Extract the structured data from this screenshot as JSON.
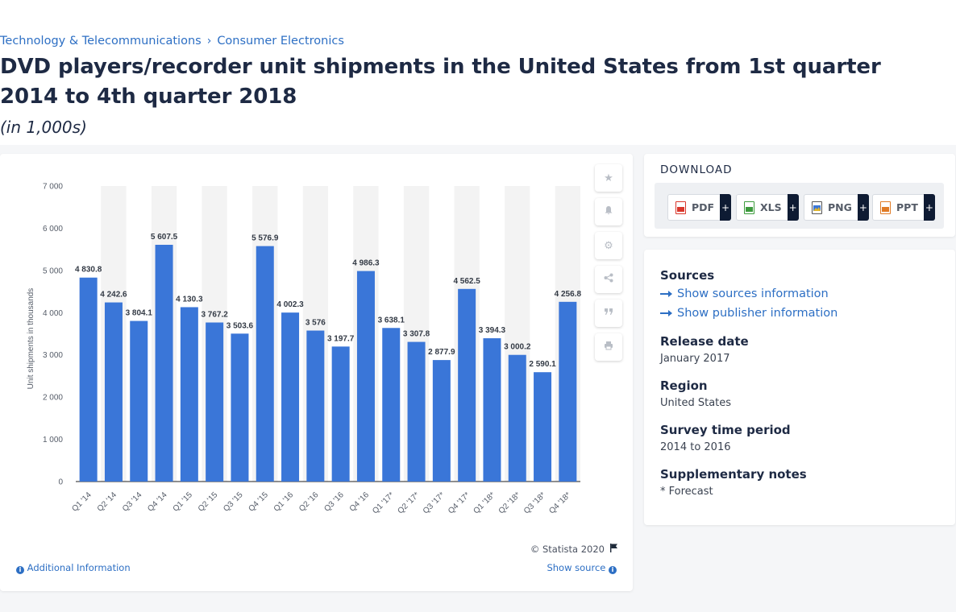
{
  "breadcrumb": {
    "items": [
      "Technology & Telecommunications",
      "Consumer Electronics"
    ],
    "separator": "›"
  },
  "title": "DVD players/recorder unit shipments in the United States from 1st quarter 2014 to 4th quarter 2018",
  "subtitle": "(in 1,000s)",
  "chart_data": {
    "type": "bar",
    "categories": [
      "Q1 '14",
      "Q2 '14",
      "Q3 '14",
      "Q4 '14",
      "Q1 '15",
      "Q2 '15",
      "Q3 '15",
      "Q4 '15",
      "Q1 '16",
      "Q2 '16",
      "Q3 '16",
      "Q4 '16",
      "Q1 '17*",
      "Q2 '17*",
      "Q3 '17*",
      "Q4 '17*",
      "Q1 '18*",
      "Q2 '18*",
      "Q3 '18*",
      "Q4 '18*"
    ],
    "values": [
      4830.8,
      4242.6,
      3804.1,
      5607.5,
      4130.3,
      3767.2,
      3503.6,
      5576.9,
      4002.3,
      3576,
      3197.7,
      4986.3,
      3638.1,
      3307.8,
      2877.9,
      4562.5,
      3394.3,
      3000.2,
      2590.1,
      4256.8
    ],
    "value_labels": [
      "4 830.8",
      "4 242.6",
      "3 804.1",
      "5 607.5",
      "4 130.3",
      "3 767.2",
      "3 503.6",
      "5 576.9",
      "4 002.3",
      "3 576",
      "3 197.7",
      "4 986.3",
      "3 638.1",
      "3 307.8",
      "2 877.9",
      "4 562.5",
      "3 394.3",
      "3 000.2",
      "2 590.1",
      "4 256.8"
    ],
    "ylabel": "Unit shipments in thousands",
    "xlabel": "",
    "ylim": [
      0,
      7000
    ],
    "yticks": [
      0,
      1000,
      2000,
      3000,
      4000,
      5000,
      6000,
      7000
    ],
    "ytick_labels": [
      "0",
      "1 000",
      "2 000",
      "3 000",
      "4 000",
      "5 000",
      "6 000",
      "7 000"
    ],
    "bar_color": "#3a76d8",
    "band_color": "#f3f3f3",
    "grid": false,
    "legend": "none"
  },
  "chart_footer": {
    "copyright": "© Statista 2020",
    "additional_info": "Additional Information",
    "show_source": "Show source"
  },
  "tools": [
    {
      "icon": "star-icon",
      "glyph": "★"
    },
    {
      "icon": "bell-icon",
      "glyph": "🔔"
    },
    {
      "icon": "gear-icon",
      "glyph": "⚙"
    },
    {
      "icon": "share-icon",
      "glyph": "⋖"
    },
    {
      "icon": "quote-icon",
      "glyph": "❞"
    },
    {
      "icon": "print-icon",
      "glyph": "⎙"
    }
  ],
  "download": {
    "title": "DOWNLOAD",
    "buttons": [
      {
        "label": "PDF",
        "color": "#d9362b"
      },
      {
        "label": "XLS",
        "color": "#3c9a3c"
      },
      {
        "label": "PNG",
        "color": "#3a76d8"
      },
      {
        "label": "PPT",
        "color": "#e07b26"
      }
    ],
    "plus": "+"
  },
  "info": {
    "sources_label": "Sources",
    "show_sources": "Show sources information",
    "show_publisher": "Show publisher information",
    "release_label": "Release date",
    "release_value": "January 2017",
    "region_label": "Region",
    "region_value": "United States",
    "survey_label": "Survey time period",
    "survey_value": "2014 to 2016",
    "notes_label": "Supplementary notes",
    "notes_value": "* Forecast"
  }
}
